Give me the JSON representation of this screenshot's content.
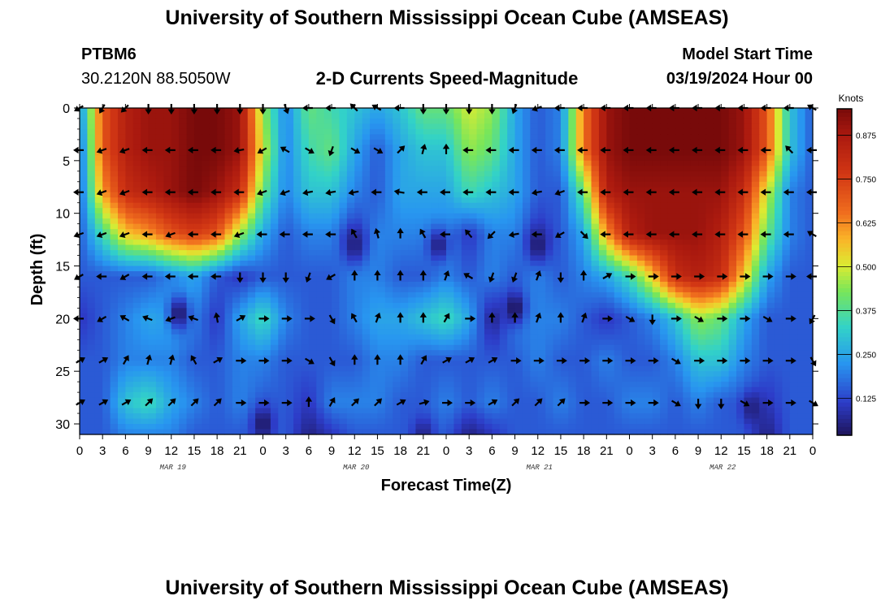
{
  "title": "University of Southern Mississippi Ocean Cube (AMSEAS)",
  "station": {
    "name": "PTBM6",
    "location": "30.2120N  88.5050W"
  },
  "subtitle": "2-D Currents Speed-Magnitude",
  "model_start": {
    "label": "Model Start Time",
    "value": "03/19/2024 Hour 00"
  },
  "footer_title": "University of Southern Mississippi Ocean Cube (AMSEAS)",
  "chart_data": {
    "type": "heatmap",
    "title": "2-D Currents Speed-Magnitude",
    "xlabel": "Forecast Time(Z)",
    "ylabel": "Depth (ft)",
    "x_hours": [
      0,
      96
    ],
    "xlim": [
      0,
      96
    ],
    "ylim": [
      0,
      31
    ],
    "y_inverted": true,
    "x_tick_hours": [
      0,
      3,
      6,
      9,
      12,
      15,
      18,
      21,
      24,
      27,
      30,
      33,
      36,
      39,
      42,
      45,
      48,
      51,
      54,
      57,
      60,
      63,
      66,
      69,
      72,
      75,
      78,
      81,
      84,
      87,
      90,
      93,
      96
    ],
    "x_tick_labels": [
      "0",
      "3",
      "6",
      "9",
      "12",
      "15",
      "18",
      "21",
      "0",
      "3",
      "6",
      "9",
      "12",
      "15",
      "18",
      "21",
      "0",
      "3",
      "6",
      "9",
      "12",
      "15",
      "18",
      "21",
      "0",
      "3",
      "6",
      "9",
      "12",
      "15",
      "18",
      "21",
      "0"
    ],
    "date_labels": [
      {
        "hour": 12,
        "text": "MAR 19"
      },
      {
        "hour": 36,
        "text": "MAR 20"
      },
      {
        "hour": 60,
        "text": "MAR 21"
      },
      {
        "hour": 84,
        "text": "MAR 22"
      }
    ],
    "y_ticks": [
      0,
      5,
      10,
      15,
      20,
      25,
      30
    ],
    "y_tick_labels": [
      "0",
      "5",
      "10",
      "15",
      "20",
      "25",
      "30"
    ],
    "colorbar": {
      "label": "Knots",
      "range": [
        0.02,
        0.95
      ],
      "ticks": [
        0.125,
        0.25,
        0.375,
        0.5,
        0.625,
        0.75,
        0.875
      ],
      "tick_labels": [
        "0.125",
        "0.250",
        "0.375",
        "0.500",
        "0.625",
        "0.750",
        "0.875"
      ]
    },
    "grid_hours": [
      0,
      3,
      6,
      9,
      12,
      15,
      18,
      21,
      24,
      27,
      30,
      33,
      36,
      39,
      42,
      45,
      48,
      51,
      54,
      57,
      60,
      63,
      66,
      69,
      72,
      75,
      78,
      81,
      84,
      87,
      90,
      93,
      96
    ],
    "grid_depths": [
      0,
      4,
      8,
      12,
      16,
      20,
      24,
      28,
      31
    ],
    "speed_knots": [
      [
        0.2,
        0.7,
        0.85,
        0.9,
        0.9,
        0.95,
        0.95,
        0.9,
        0.45,
        0.2,
        0.4,
        0.35,
        0.3,
        0.25,
        0.3,
        0.4,
        0.4,
        0.5,
        0.45,
        0.25,
        0.15,
        0.2,
        0.65,
        0.9,
        0.95,
        0.95,
        0.95,
        0.95,
        0.95,
        0.9,
        0.7,
        0.3,
        0.15
      ],
      [
        0.15,
        0.7,
        0.85,
        0.9,
        0.9,
        0.95,
        0.95,
        0.9,
        0.5,
        0.2,
        0.35,
        0.4,
        0.25,
        0.15,
        0.25,
        0.3,
        0.3,
        0.45,
        0.4,
        0.25,
        0.15,
        0.2,
        0.65,
        0.9,
        0.95,
        0.95,
        0.95,
        0.95,
        0.95,
        0.9,
        0.7,
        0.3,
        0.15
      ],
      [
        0.15,
        0.6,
        0.8,
        0.85,
        0.9,
        0.95,
        0.9,
        0.8,
        0.4,
        0.2,
        0.3,
        0.3,
        0.2,
        0.15,
        0.25,
        0.25,
        0.25,
        0.35,
        0.3,
        0.25,
        0.15,
        0.15,
        0.4,
        0.85,
        0.9,
        0.9,
        0.9,
        0.9,
        0.9,
        0.8,
        0.5,
        0.2,
        0.15
      ],
      [
        0.15,
        0.35,
        0.55,
        0.6,
        0.7,
        0.75,
        0.7,
        0.45,
        0.25,
        0.15,
        0.2,
        0.2,
        0.1,
        0.2,
        0.2,
        0.2,
        0.2,
        0.1,
        0.2,
        0.2,
        0.1,
        0.15,
        0.25,
        0.6,
        0.85,
        0.9,
        0.9,
        0.9,
        0.85,
        0.7,
        0.4,
        0.2,
        0.15
      ],
      [
        0.15,
        0.15,
        0.15,
        0.15,
        0.2,
        0.25,
        0.15,
        0.1,
        0.15,
        0.15,
        0.15,
        0.15,
        0.2,
        0.2,
        0.15,
        0.15,
        0.2,
        0.15,
        0.2,
        0.15,
        0.2,
        0.15,
        0.2,
        0.25,
        0.35,
        0.55,
        0.8,
        0.85,
        0.8,
        0.55,
        0.25,
        0.15,
        0.15
      ],
      [
        0.1,
        0.15,
        0.2,
        0.25,
        0.25,
        0.2,
        0.1,
        0.25,
        0.35,
        0.2,
        0.15,
        0.15,
        0.2,
        0.25,
        0.25,
        0.3,
        0.35,
        0.25,
        0.05,
        0.2,
        0.2,
        0.2,
        0.15,
        0.1,
        0.15,
        0.2,
        0.3,
        0.45,
        0.4,
        0.25,
        0.15,
        0.15,
        0.15
      ],
      [
        0.15,
        0.15,
        0.2,
        0.2,
        0.2,
        0.15,
        0.15,
        0.2,
        0.2,
        0.15,
        0.15,
        0.15,
        0.15,
        0.2,
        0.2,
        0.15,
        0.15,
        0.15,
        0.15,
        0.15,
        0.2,
        0.15,
        0.15,
        0.2,
        0.15,
        0.15,
        0.2,
        0.3,
        0.3,
        0.2,
        0.15,
        0.15,
        0.15
      ],
      [
        0.15,
        0.15,
        0.3,
        0.35,
        0.25,
        0.2,
        0.15,
        0.2,
        0.15,
        0.15,
        0.1,
        0.2,
        0.2,
        0.2,
        0.15,
        0.15,
        0.2,
        0.15,
        0.2,
        0.15,
        0.15,
        0.2,
        0.15,
        0.15,
        0.2,
        0.2,
        0.15,
        0.2,
        0.15,
        0.15,
        0.1,
        0.15,
        0.15
      ],
      [
        0.15,
        0.15,
        0.2,
        0.2,
        0.2,
        0.15,
        0.15,
        0.15,
        0.15,
        0.15,
        0.05,
        0.1,
        0.15,
        0.15,
        0.15,
        0.15,
        0.15,
        0.05,
        0.1,
        0.15,
        0.15,
        0.15,
        0.15,
        0.15,
        0.15,
        0.15,
        0.15,
        0.15,
        0.15,
        0.15,
        0.05,
        0.15,
        0.15
      ]
    ],
    "dark_spots": [
      {
        "hour": 13,
        "depth": 19.5,
        "knots": 0.03
      },
      {
        "hour": 36,
        "depth": 13,
        "knots": 0.05
      },
      {
        "hour": 47,
        "depth": 13,
        "knots": 0.05
      },
      {
        "hour": 57,
        "depth": 19,
        "knots": 0.02
      },
      {
        "hour": 60,
        "depth": 13,
        "knots": 0.04
      },
      {
        "hour": 24,
        "depth": 30,
        "knots": 0.03
      },
      {
        "hour": 45,
        "depth": 31,
        "knots": 0.06
      },
      {
        "hour": 88,
        "depth": 28.5,
        "knots": 0.05
      }
    ],
    "vector_hours": [
      0,
      3,
      6,
      9,
      12,
      15,
      18,
      21,
      24,
      27,
      30,
      33,
      36,
      39,
      42,
      45,
      48,
      51,
      54,
      57,
      60,
      63,
      66,
      69,
      72,
      75,
      78,
      81,
      84,
      87,
      90,
      93,
      96
    ],
    "vector_depths": [
      0,
      4,
      8,
      12,
      16,
      20,
      24,
      28
    ],
    "vector_directions_deg": [
      [
        240,
        210,
        225,
        180,
        180,
        180,
        180,
        180,
        180,
        160,
        270,
        270,
        315,
        300,
        270,
        180,
        180,
        180,
        180,
        200,
        250,
        270,
        270,
        270,
        270,
        270,
        270,
        270,
        270,
        270,
        270,
        270,
        300
      ],
      [
        270,
        250,
        250,
        270,
        270,
        270,
        270,
        260,
        240,
        300,
        120,
        200,
        120,
        120,
        45,
        15,
        0,
        270,
        270,
        270,
        270,
        270,
        270,
        270,
        270,
        270,
        270,
        270,
        270,
        270,
        270,
        315,
        270
      ],
      [
        270,
        250,
        250,
        270,
        270,
        270,
        270,
        270,
        250,
        250,
        260,
        260,
        260,
        270,
        280,
        270,
        270,
        270,
        270,
        270,
        260,
        250,
        270,
        270,
        270,
        270,
        270,
        270,
        270,
        270,
        270,
        270,
        270
      ],
      [
        250,
        250,
        250,
        270,
        250,
        270,
        270,
        250,
        270,
        270,
        270,
        270,
        330,
        345,
        0,
        330,
        270,
        320,
        225,
        260,
        270,
        240,
        135,
        270,
        270,
        270,
        270,
        270,
        270,
        270,
        270,
        270,
        300
      ],
      [
        240,
        270,
        240,
        270,
        270,
        270,
        270,
        180,
        180,
        180,
        200,
        240,
        0,
        0,
        0,
        0,
        20,
        300,
        200,
        200,
        20,
        180,
        0,
        60,
        90,
        90,
        90,
        90,
        90,
        90,
        90,
        90,
        270
      ],
      [
        270,
        240,
        300,
        290,
        250,
        290,
        350,
        60,
        90,
        90,
        90,
        150,
        330,
        20,
        0,
        0,
        30,
        90,
        0,
        0,
        20,
        0,
        20,
        90,
        120,
        180,
        90,
        120,
        90,
        90,
        120,
        90,
        210
      ],
      [
        60,
        60,
        30,
        15,
        15,
        330,
        60,
        90,
        90,
        90,
        120,
        150,
        0,
        0,
        0,
        30,
        60,
        60,
        60,
        90,
        90,
        90,
        90,
        90,
        90,
        90,
        120,
        90,
        90,
        90,
        90,
        90,
        150
      ],
      [
        60,
        60,
        60,
        45,
        45,
        45,
        45,
        90,
        90,
        90,
        0,
        30,
        45,
        45,
        60,
        75,
        90,
        90,
        60,
        45,
        45,
        45,
        90,
        90,
        90,
        90,
        120,
        180,
        180,
        120,
        90,
        90,
        120
      ]
    ]
  }
}
